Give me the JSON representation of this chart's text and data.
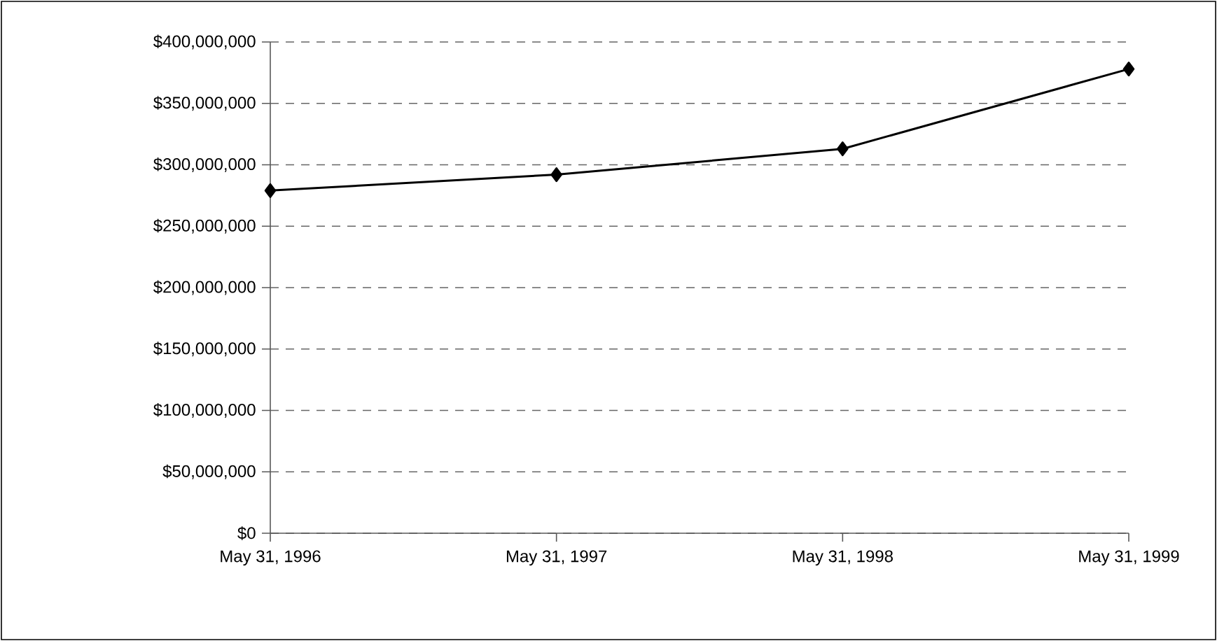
{
  "chart_data": {
    "type": "line",
    "categories": [
      "May 31, 1996",
      "May 31, 1997",
      "May 31, 1998",
      "May 31, 1999"
    ],
    "series": [
      {
        "color": "#000000",
        "values": [
          279000000,
          292000000,
          313000000,
          378000000
        ]
      }
    ],
    "ylim": [
      0,
      400000000
    ],
    "yticks": [
      {
        "value": 0,
        "label": "$0"
      },
      {
        "value": 50000000,
        "label": "$50,000,000"
      },
      {
        "value": 100000000,
        "label": "$100,000,000"
      },
      {
        "value": 150000000,
        "label": "$150,000,000"
      },
      {
        "value": 200000000,
        "label": "$200,000,000"
      },
      {
        "value": 250000000,
        "label": "$250,000,000"
      },
      {
        "value": 300000000,
        "label": "$300,000,000"
      },
      {
        "value": 350000000,
        "label": "$350,000,000"
      },
      {
        "value": 400000000,
        "label": "$400,000,000"
      }
    ],
    "grid": "y",
    "marker": "diamond",
    "line_style": "solid"
  }
}
